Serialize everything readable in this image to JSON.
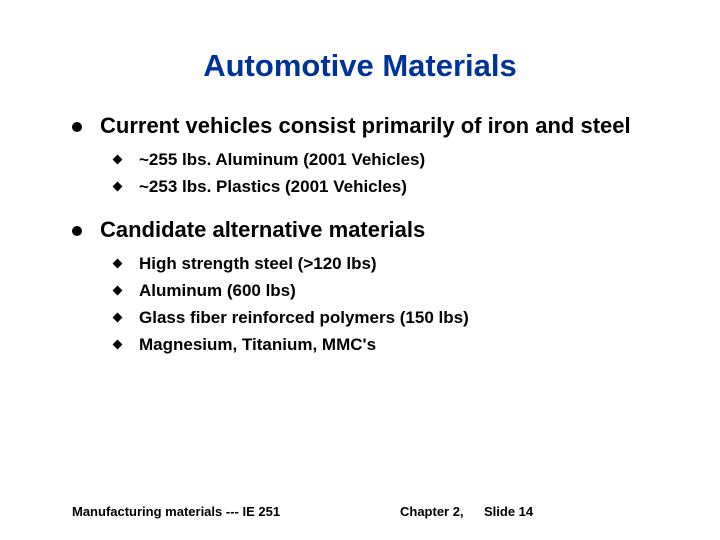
{
  "title": {
    "text": "Automotive Materials",
    "color": "#003399",
    "fontsize": 31
  },
  "body_fontsize_l1": 22,
  "body_fontsize_l2": 17,
  "footer_fontsize": 13,
  "text_color": "#000000",
  "background_color": "#ffffff",
  "bullets": [
    {
      "text": "Current vehicles consist primarily of iron and steel",
      "sub": [
        "~255 lbs. Aluminum (2001 Vehicles)",
        "~253 lbs. Plastics (2001 Vehicles)"
      ]
    },
    {
      "text": "Candidate alternative materials",
      "sub": [
        "High strength steel (>120 lbs)",
        "Aluminum (600 lbs)",
        "Glass fiber reinforced polymers (150 lbs)",
        "Magnesium, Titanium, MMC's"
      ]
    }
  ],
  "footer": {
    "left": "Manufacturing materials  --- IE 251",
    "mid": "Chapter 2,",
    "right": "Slide 14"
  }
}
